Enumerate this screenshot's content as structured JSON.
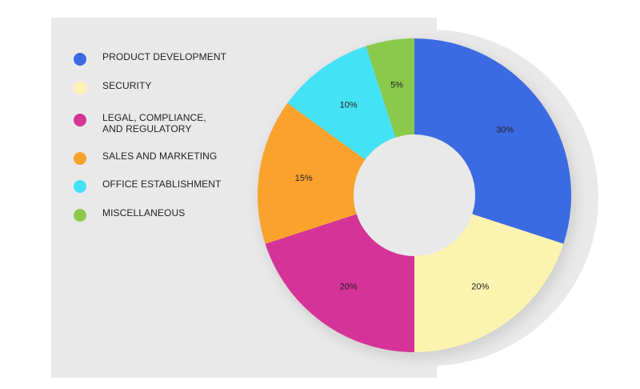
{
  "chart_data": {
    "type": "pie",
    "variant": "donut",
    "title": "",
    "legend_position": "left",
    "slices": [
      {
        "label": "PRODUCT DEVELOPMENT",
        "value": 30,
        "display": "30%",
        "color": "#3c6ae2"
      },
      {
        "label": "SECURITY",
        "value": 20,
        "display": "20%",
        "color": "#fdf3b0"
      },
      {
        "label": "LEGAL, COMPLIANCE,\nAND REGULATORY",
        "value": 20,
        "display": "20%",
        "color": "#d53397"
      },
      {
        "label": "SALES AND MARKETING",
        "value": 15,
        "display": "15%",
        "color": "#fba22c"
      },
      {
        "label": "OFFICE ESTABLISHMENT",
        "value": 10,
        "display": "10%",
        "color": "#45e2f6"
      },
      {
        "label": "MISCELLANEOUS",
        "value": 5,
        "display": "5%",
        "color": "#8bc94a"
      }
    ]
  }
}
